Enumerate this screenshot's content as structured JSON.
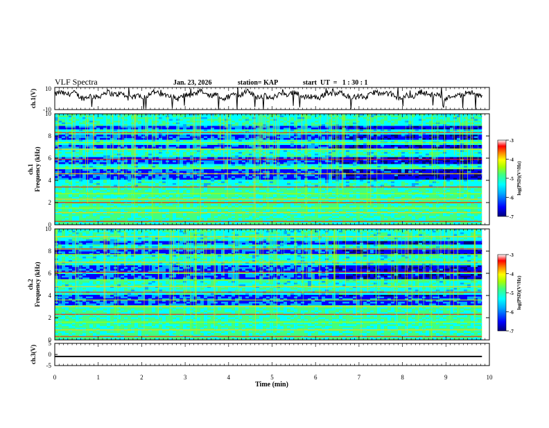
{
  "header": {
    "title": "VLF Spectra",
    "date": "Jan. 23, 2026",
    "station": "station= KAP",
    "start": "start  UT  =   1 : 30 : 1"
  },
  "chart_data": [
    {
      "type": "line",
      "name": "ch1-voltage",
      "ylabel": "ch.1(V)",
      "ylim": [
        -10,
        10
      ],
      "ytick_labels": [
        "-10",
        "10"
      ],
      "xlim": [
        0,
        10
      ],
      "baseline": 3,
      "amplitude": 4,
      "spike_down_min": -10,
      "spike_up_max": 10
    },
    {
      "type": "heatmap",
      "name": "ch1-spectrogram",
      "ylabel_top": "ch.1",
      "ylabel": "Frequency (kHz)",
      "ylim": [
        0,
        10
      ],
      "ytick_labels": [
        "0",
        "2",
        "4",
        "6",
        "8",
        "10"
      ],
      "data_extent_min": 9.83,
      "colorscale": [
        "#00007a",
        "#0000ff",
        "#00aaff",
        "#00ffff",
        "#40ff80",
        "#aaff00",
        "#ffff00",
        "#ff8800",
        "#ff0000",
        "#ffffff"
      ],
      "colorbar": {
        "label": "log(PSD)(V²/Hz)",
        "range": [
          -7,
          -3
        ],
        "tick_labels": [
          "-3",
          "-4",
          "-5",
          "-6",
          "-7"
        ]
      },
      "bright_lines_khz": [
        0.3,
        1.1,
        1.5,
        2.0,
        2.3,
        2.8,
        3.4,
        4.6,
        5.1,
        5.9,
        6.8,
        7.4,
        8.3
      ],
      "dark_bands_khz": [
        [
          4.2,
          5.0
        ],
        [
          5.5,
          6.1
        ],
        [
          6.9,
          7.3
        ],
        [
          7.8,
          8.2
        ],
        [
          8.6,
          9.0
        ]
      ]
    },
    {
      "type": "heatmap",
      "name": "ch2-spectrogram",
      "ylabel_top": "ch.2",
      "ylabel": "Frequency (kHz)",
      "ylim": [
        0,
        10
      ],
      "ytick_labels": [
        "0",
        "2",
        "4",
        "6",
        "8",
        "10"
      ],
      "data_extent_min": 9.83,
      "colorbar": {
        "label": "log(PSD)(V²/Hz)",
        "range": [
          -7,
          -3
        ],
        "tick_labels": [
          "-3",
          "-4",
          "-5",
          "-6",
          "-7"
        ]
      },
      "bright_lines_khz": [
        0.3,
        0.9,
        1.6,
        2.3,
        3.0,
        3.6,
        4.3,
        4.8,
        5.4,
        6.1,
        7.0,
        7.7,
        8.2,
        9.3
      ],
      "dark_bands_khz": [
        [
          3.2,
          4.2
        ],
        [
          5.6,
          6.0
        ],
        [
          6.2,
          6.8
        ],
        [
          7.8,
          8.2
        ],
        [
          8.6,
          9.0
        ]
      ]
    },
    {
      "type": "line",
      "name": "ch3-voltage",
      "ylabel": "ch.3(V)",
      "ylim": [
        -5,
        5
      ],
      "ytick_labels": [
        "-5",
        "0",
        "5"
      ],
      "value_range": [
        -1.2,
        -0.6
      ],
      "xlim": [
        0,
        10
      ],
      "xlabel": "Time (min)",
      "xtick_labels": [
        "0",
        "1",
        "2",
        "3",
        "4",
        "5",
        "6",
        "7",
        "8",
        "9",
        "10"
      ]
    }
  ]
}
